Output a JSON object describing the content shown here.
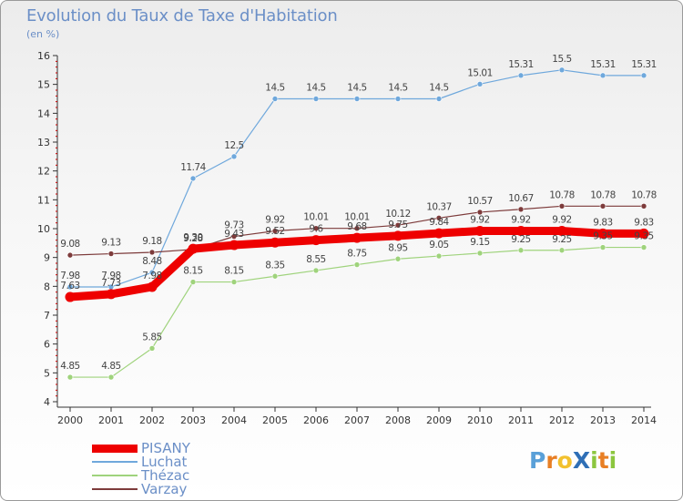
{
  "title": "Evolution du Taux de Taxe d'Habitation",
  "subtitle": "(en %)",
  "logo": {
    "text": "ProXiti",
    "letters": [
      {
        "ch": "P",
        "color": "#5aa0d8"
      },
      {
        "ch": "r",
        "color": "#e87f24"
      },
      {
        "ch": "o",
        "color": "#f2c12e"
      },
      {
        "ch": "X",
        "color": "#2f6fb6"
      },
      {
        "ch": "i",
        "color": "#8cc63f"
      },
      {
        "ch": "t",
        "color": "#e87f24"
      },
      {
        "ch": "i",
        "color": "#8cc63f"
      }
    ]
  },
  "chart_data": {
    "type": "line",
    "title": "Evolution du Taux de Taxe d'Habitation",
    "subtitle": "(en %)",
    "x": [
      "2000",
      "2001",
      "2002",
      "2003",
      "2004",
      "2005",
      "2006",
      "2007",
      "2008",
      "2009",
      "2010",
      "2011",
      "2012",
      "2013",
      "2014"
    ],
    "ylim": [
      4,
      16
    ],
    "yticks": [
      4,
      5,
      6,
      7,
      8,
      9,
      10,
      11,
      12,
      13,
      14,
      15,
      16
    ],
    "grid": false,
    "legend": "bottom-left",
    "series": [
      {
        "name": "Luchat",
        "color": "#6fa8dc",
        "width": 1.2,
        "values": [
          7.98,
          7.98,
          8.48,
          11.74,
          12.5,
          14.5,
          14.5,
          14.5,
          14.5,
          14.5,
          15.01,
          15.31,
          15.5,
          15.31,
          15.31
        ],
        "labels": [
          "7.98",
          "7.98",
          "8.48",
          "11.74",
          "12.5",
          "14.5",
          "14.5",
          "14.5",
          "14.5",
          "14.5",
          "15.01",
          "15.31",
          "15.5",
          "15.31",
          "15.31"
        ]
      },
      {
        "name": "Thézac",
        "color": "#9fd37c",
        "width": 1.2,
        "values": [
          4.85,
          4.85,
          5.85,
          8.15,
          8.15,
          8.35,
          8.55,
          8.75,
          8.95,
          9.05,
          9.15,
          9.25,
          9.25,
          9.35,
          9.35
        ],
        "labels": [
          "4.85",
          "4.85",
          "5.85",
          "8.15",
          "8.15",
          "8.35",
          "8.55",
          "8.75",
          "8.95",
          "9.05",
          "9.15",
          "9.25",
          "9.25",
          "9.35",
          "9.35"
        ]
      },
      {
        "name": "Varzay",
        "color": "#7d3b3b",
        "width": 1.2,
        "values": [
          9.08,
          9.13,
          9.18,
          9.28,
          9.73,
          9.92,
          10.01,
          10.01,
          10.12,
          10.37,
          10.57,
          10.67,
          10.78,
          10.78,
          10.78
        ],
        "labels": [
          "9.08",
          "9.13",
          "9.18",
          "9.28",
          "9.73",
          "9.92",
          "10.01",
          "10.01",
          "10.12",
          "10.37",
          "10.57",
          "10.67",
          "10.78",
          "10.78",
          "10.78"
        ]
      },
      {
        "name": "PISANY",
        "color": "#ee0000",
        "width": 9,
        "values": [
          7.63,
          7.73,
          7.98,
          9.3,
          9.43,
          9.52,
          9.6,
          9.68,
          9.75,
          9.84,
          9.92,
          9.92,
          9.92,
          9.83,
          9.83
        ],
        "labels": [
          "7.63",
          "7.73",
          "7.98",
          "9.30",
          "9.43",
          "9.52",
          "9.6",
          "9.68",
          "9.75",
          "9.84",
          "9.92",
          "9.92",
          "9.92",
          "9.83",
          "9.83"
        ]
      }
    ]
  },
  "legend_order": [
    "PISANY",
    "Luchat",
    "Thézac",
    "Varzay"
  ]
}
